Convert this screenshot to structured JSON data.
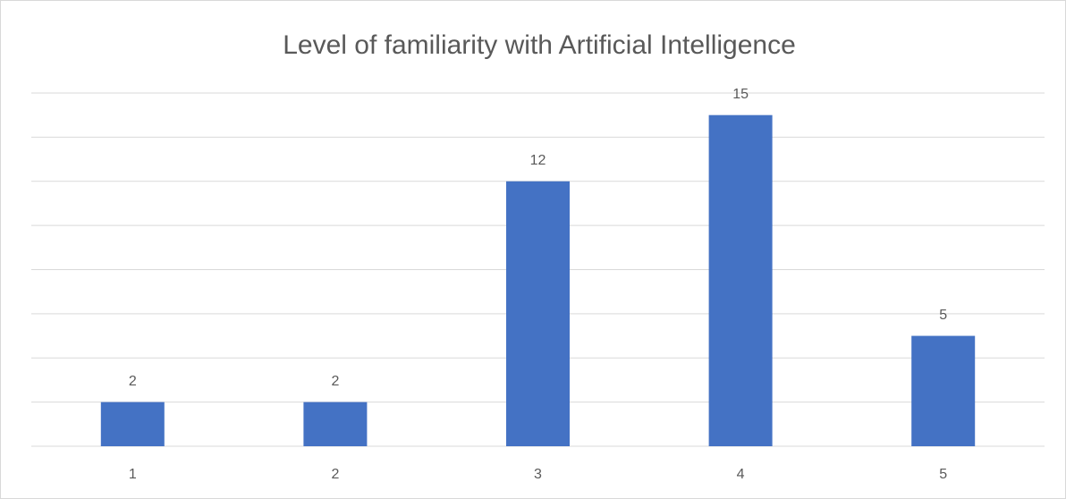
{
  "chart_data": {
    "type": "bar",
    "title": "Level of familiarity with Artificial Intelligence",
    "categories": [
      "1",
      "2",
      "3",
      "4",
      "5"
    ],
    "values": [
      2,
      2,
      12,
      15,
      5
    ],
    "color": "#4472c4",
    "ylim": [
      0,
      16
    ],
    "yticks": [
      0,
      2,
      4,
      6,
      8,
      10,
      12,
      14,
      16
    ],
    "grid": true
  }
}
